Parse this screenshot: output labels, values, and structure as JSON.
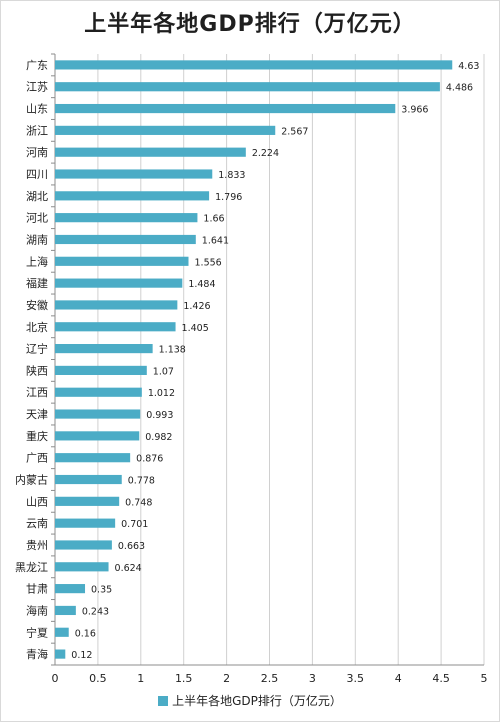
{
  "chart_data": {
    "type": "bar",
    "orientation": "horizontal",
    "title": "上半年各地GDP排行（万亿元）",
    "categories": [
      "广东",
      "江苏",
      "山东",
      "浙江",
      "河南",
      "四川",
      "湖北",
      "河北",
      "湖南",
      "上海",
      "福建",
      "安徽",
      "北京",
      "辽宁",
      "陕西",
      "江西",
      "天津",
      "重庆",
      "广西",
      "内蒙古",
      "山西",
      "云南",
      "贵州",
      "黑龙江",
      "甘肃",
      "海南",
      "宁夏",
      "青海"
    ],
    "value_labels": [
      "4.63",
      "4.486",
      "3.966",
      "2.567",
      "2.224",
      "1.833",
      "1.796",
      "1.66",
      "1.641",
      "1.556",
      "1.484",
      "1.426",
      "1.405",
      "1.138",
      "1.07",
      "1.012",
      "0.993",
      "0.982",
      "0.876",
      "0.778",
      "0.748",
      "0.701",
      "0.663",
      "0.624",
      "0.35",
      "0.243",
      "0.16",
      "0.12"
    ],
    "series": [
      {
        "name": "上半年各地GDP排行（万亿元）",
        "values": [
          4.63,
          4.486,
          3.966,
          2.567,
          2.224,
          1.833,
          1.796,
          1.66,
          1.641,
          1.556,
          1.484,
          1.426,
          1.405,
          1.138,
          1.07,
          1.012,
          0.993,
          0.982,
          0.876,
          0.778,
          0.748,
          0.701,
          0.663,
          0.624,
          0.35,
          0.243,
          0.16,
          0.12
        ]
      }
    ],
    "xlim": [
      0,
      5
    ],
    "x_ticks": [
      0,
      0.5,
      1,
      1.5,
      2,
      2.5,
      3,
      3.5,
      4,
      4.5,
      5
    ],
    "x_tick_labels": [
      "0",
      "0.5",
      "1",
      "1.5",
      "2",
      "2.5",
      "3",
      "3.5",
      "4",
      "4.5",
      "5"
    ],
    "xlabel": "",
    "ylabel": "",
    "grid": true,
    "legend_position": "bottom",
    "bar_color": "#4bacc6"
  }
}
